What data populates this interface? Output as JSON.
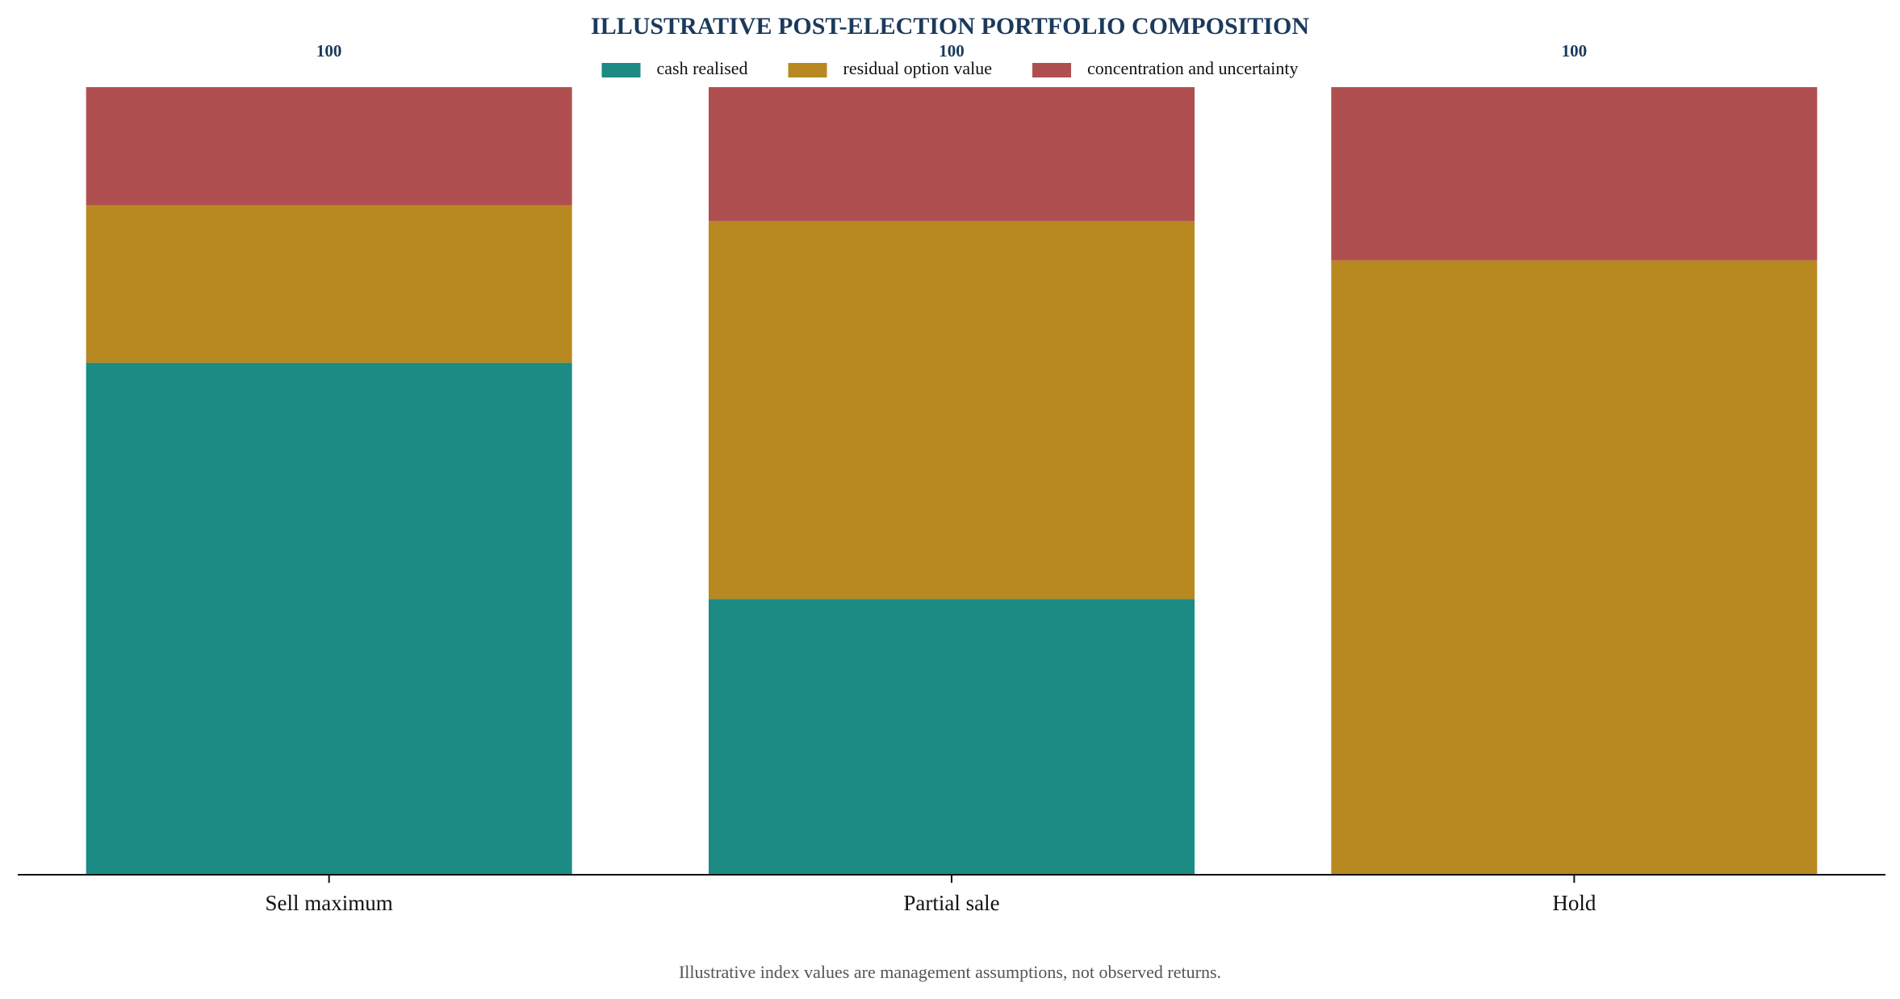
{
  "chart_data": {
    "type": "bar",
    "stacked": true,
    "title": "ILLUSTRATIVE POST-ELECTION PORTFOLIO COMPOSITION",
    "categories": [
      "Sell maximum",
      "Partial sale",
      "Hold"
    ],
    "series": [
      {
        "name": "cash realised",
        "color": "#1b8b84",
        "values": [
          65,
          35,
          0
        ]
      },
      {
        "name": "residual option value",
        "color": "#b88821",
        "values": [
          20,
          48,
          78
        ]
      },
      {
        "name": "concentration and uncertainty",
        "color": "#b04f4f",
        "values": [
          15,
          17,
          22
        ]
      }
    ],
    "totals": [
      "100",
      "100",
      "100"
    ],
    "xlabel": "",
    "ylabel": "",
    "ylim": [
      0,
      100
    ],
    "grid": false,
    "legend_position": "top-center",
    "footnote": "Illustrative index values are management assumptions, not observed returns."
  }
}
